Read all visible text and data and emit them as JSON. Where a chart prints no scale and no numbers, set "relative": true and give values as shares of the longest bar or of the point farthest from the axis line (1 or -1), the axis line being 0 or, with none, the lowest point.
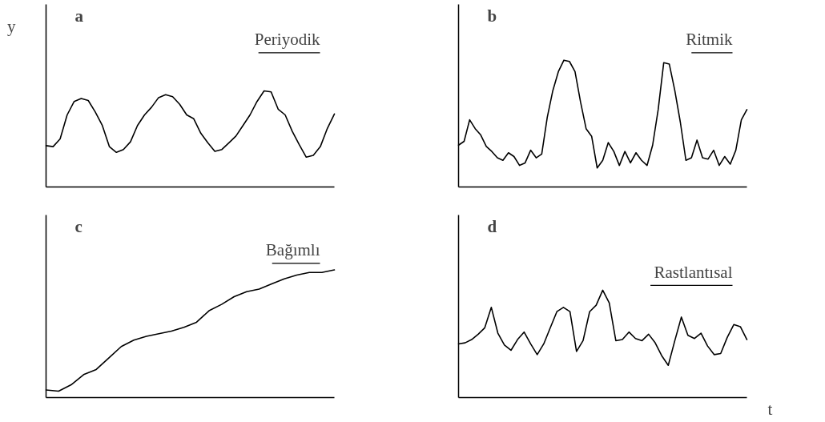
{
  "chart_data": [
    {
      "type": "line",
      "title": "a",
      "subtitle": "Periyodik",
      "ylabel": "y",
      "relative": true,
      "categories": [
        null,
        null,
        null,
        null,
        null,
        null,
        null,
        null,
        null,
        null,
        null,
        null,
        null,
        null,
        null,
        null,
        null,
        null,
        null,
        null,
        null,
        null,
        null,
        null,
        null,
        null,
        null,
        null,
        null,
        null,
        null,
        null,
        null,
        null,
        null,
        null,
        null,
        null,
        null,
        null,
        null,
        null
      ],
      "series": [
        {
          "color": "#000000",
          "values": [
            0.43,
            0.42,
            0.5,
            0.75,
            0.89,
            0.92,
            0.9,
            0.78,
            0.64,
            0.42,
            0.36,
            0.39,
            0.47,
            0.64,
            0.75,
            0.83,
            0.93,
            0.96,
            0.94,
            0.86,
            0.75,
            0.71,
            0.56,
            0.46,
            0.37,
            0.39,
            0.46,
            0.53,
            0.64,
            0.75,
            0.89,
            1,
            0.99,
            0.81,
            0.75,
            0.58,
            0.44,
            0.31,
            0.33,
            0.42,
            0.61,
            0.76
          ]
        }
      ]
    },
    {
      "type": "line",
      "title": "b",
      "subtitle": "Ritmik",
      "relative": true,
      "categories": [
        null,
        null,
        null,
        null,
        null,
        null,
        null,
        null,
        null,
        null,
        null,
        null,
        null,
        null,
        null,
        null,
        null,
        null,
        null,
        null,
        null,
        null,
        null,
        null,
        null,
        null,
        null,
        null,
        null,
        null,
        null,
        null,
        null,
        null,
        null,
        null,
        null,
        null,
        null,
        null,
        null,
        null,
        null,
        null,
        null,
        null,
        null,
        null,
        null,
        null,
        null,
        null,
        null
      ],
      "series": [
        {
          "color": "#000000",
          "values": [
            0.33,
            0.36,
            0.53,
            0.46,
            0.41,
            0.32,
            0.28,
            0.23,
            0.21,
            0.27,
            0.24,
            0.17,
            0.19,
            0.29,
            0.23,
            0.26,
            0.55,
            0.76,
            0.91,
            1,
            0.99,
            0.91,
            0.67,
            0.46,
            0.4,
            0.15,
            0.21,
            0.35,
            0.28,
            0.17,
            0.28,
            0.19,
            0.27,
            0.21,
            0.17,
            0.33,
            0.61,
            0.98,
            0.97,
            0.76,
            0.51,
            0.21,
            0.23,
            0.37,
            0.23,
            0.22,
            0.29,
            0.17,
            0.24,
            0.18,
            0.29,
            0.53,
            0.61
          ]
        }
      ]
    },
    {
      "type": "line",
      "title": "c",
      "subtitle": "Bağımlı",
      "relative": true,
      "categories": [
        null,
        null,
        null,
        null,
        null,
        null,
        null,
        null,
        null,
        null,
        null,
        null,
        null,
        null,
        null,
        null,
        null,
        null,
        null,
        null,
        null,
        null,
        null,
        null
      ],
      "series": [
        {
          "color": "#000000",
          "values": [
            0.06,
            0.05,
            0.1,
            0.18,
            0.22,
            0.31,
            0.4,
            0.45,
            0.48,
            0.5,
            0.52,
            0.55,
            0.59,
            0.68,
            0.73,
            0.79,
            0.83,
            0.85,
            0.89,
            0.93,
            0.96,
            0.98,
            0.98,
            1
          ]
        }
      ]
    },
    {
      "type": "line",
      "title": "d",
      "subtitle": "Rastlantısal",
      "xlabel": "t",
      "relative": true,
      "categories": [
        null,
        null,
        null,
        null,
        null,
        null,
        null,
        null,
        null,
        null,
        null,
        null,
        null,
        null,
        null,
        null,
        null,
        null,
        null,
        null,
        null,
        null,
        null,
        null,
        null,
        null,
        null,
        null,
        null,
        null,
        null,
        null,
        null,
        null,
        null,
        null,
        null,
        null,
        null,
        null,
        null,
        null,
        null,
        null,
        null
      ],
      "series": [
        {
          "color": "#000000",
          "values": [
            0.5,
            0.51,
            0.54,
            0.59,
            0.65,
            0.84,
            0.6,
            0.49,
            0.44,
            0.54,
            0.61,
            0.5,
            0.4,
            0.5,
            0.65,
            0.8,
            0.84,
            0.8,
            0.43,
            0.53,
            0.8,
            0.86,
            1,
            0.88,
            0.53,
            0.54,
            0.61,
            0.55,
            0.53,
            0.59,
            0.51,
            0.39,
            0.3,
            0.53,
            0.75,
            0.58,
            0.55,
            0.6,
            0.48,
            0.4,
            0.41,
            0.56,
            0.68,
            0.66,
            0.54
          ]
        }
      ]
    }
  ]
}
